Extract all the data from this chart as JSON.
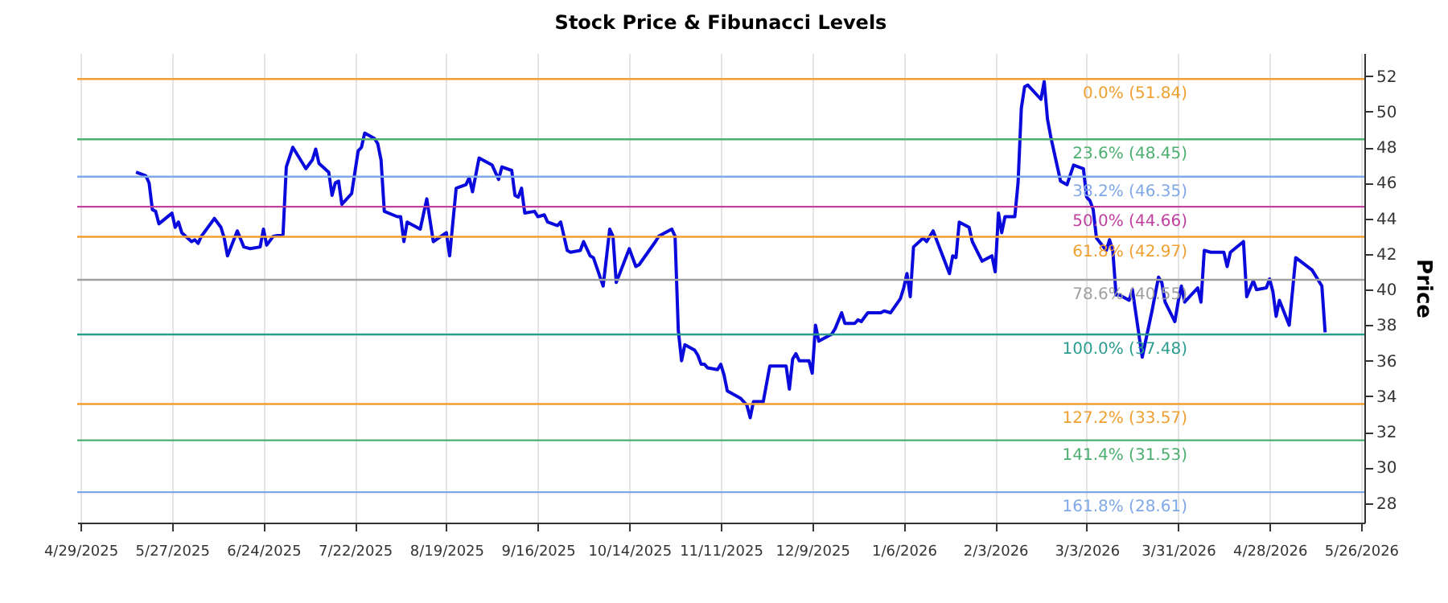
{
  "chart_data": {
    "type": "line",
    "title": "Stock Price & Fibunacci Levels",
    "ylabel": "Price",
    "x": [
      "2025-05-16",
      "2025-05-19",
      "2025-05-20",
      "2025-05-21",
      "2025-05-22",
      "2025-05-23",
      "2025-05-27",
      "2025-05-28",
      "2025-05-29",
      "2025-05-30",
      "2025-06-02",
      "2025-06-03",
      "2025-06-04",
      "2025-06-05",
      "2025-06-09",
      "2025-06-11",
      "2025-06-12",
      "2025-06-13",
      "2025-06-16",
      "2025-06-18",
      "2025-06-20",
      "2025-06-23",
      "2025-06-24",
      "2025-06-25",
      "2025-06-27",
      "2025-06-30",
      "2025-07-01",
      "2025-07-03",
      "2025-07-07",
      "2025-07-09",
      "2025-07-10",
      "2025-07-11",
      "2025-07-14",
      "2025-07-15",
      "2025-07-16",
      "2025-07-17",
      "2025-07-18",
      "2025-07-21",
      "2025-07-23",
      "2025-07-24",
      "2025-07-25",
      "2025-07-28",
      "2025-07-29",
      "2025-07-30",
      "2025-07-31",
      "2025-08-04",
      "2025-08-05",
      "2025-08-06",
      "2025-08-07",
      "2025-08-11",
      "2025-08-13",
      "2025-08-15",
      "2025-08-19",
      "2025-08-20",
      "2025-08-22",
      "2025-08-25",
      "2025-08-26",
      "2025-08-27",
      "2025-08-29",
      "2025-09-02",
      "2025-09-04",
      "2025-09-05",
      "2025-09-08",
      "2025-09-09",
      "2025-09-10",
      "2025-09-11",
      "2025-09-12",
      "2025-09-15",
      "2025-09-16",
      "2025-09-18",
      "2025-09-19",
      "2025-09-22",
      "2025-09-23",
      "2025-09-25",
      "2025-09-26",
      "2025-09-29",
      "2025-09-30",
      "2025-10-02",
      "2025-10-03",
      "2025-10-06",
      "2025-10-08",
      "2025-10-09",
      "2025-10-10",
      "2025-10-14",
      "2025-10-16",
      "2025-10-17",
      "2025-10-22",
      "2025-10-23",
      "2025-10-27",
      "2025-10-28",
      "2025-10-29",
      "2025-10-30",
      "2025-10-31",
      "2025-11-03",
      "2025-11-04",
      "2025-11-05",
      "2025-11-06",
      "2025-11-07",
      "2025-11-10",
      "2025-11-11",
      "2025-11-12",
      "2025-11-13",
      "2025-11-17",
      "2025-11-19",
      "2025-11-20",
      "2025-11-21",
      "2025-11-24",
      "2025-11-26",
      "2025-12-01",
      "2025-12-02",
      "2025-12-03",
      "2025-12-04",
      "2025-12-05",
      "2025-12-08",
      "2025-12-09",
      "2025-12-10",
      "2025-12-11",
      "2025-12-15",
      "2025-12-16",
      "2025-12-18",
      "2025-12-19",
      "2025-12-22",
      "2025-12-23",
      "2025-12-24",
      "2025-12-26",
      "2025-12-30",
      "2025-12-31",
      "2026-01-02",
      "2026-01-05",
      "2026-01-06",
      "2026-01-07",
      "2026-01-08",
      "2026-01-09",
      "2026-01-12",
      "2026-01-13",
      "2026-01-15",
      "2026-01-20",
      "2026-01-21",
      "2026-01-22",
      "2026-01-23",
      "2026-01-26",
      "2026-01-27",
      "2026-01-30",
      "2026-02-02",
      "2026-02-03",
      "2026-02-04",
      "2026-02-05",
      "2026-02-06",
      "2026-02-09",
      "2026-02-10",
      "2026-02-11",
      "2026-02-12",
      "2026-02-13",
      "2026-02-17",
      "2026-02-18",
      "2026-02-19",
      "2026-02-20",
      "2026-02-23",
      "2026-02-25",
      "2026-02-27",
      "2026-03-02",
      "2026-03-03",
      "2026-03-04",
      "2026-03-05",
      "2026-03-06",
      "2026-03-09",
      "2026-03-10",
      "2026-03-11",
      "2026-03-12",
      "2026-03-13",
      "2026-03-16",
      "2026-03-17",
      "2026-03-20",
      "2026-03-23",
      "2026-03-25",
      "2026-03-26",
      "2026-03-27",
      "2026-03-30",
      "2026-03-31",
      "2026-04-01",
      "2026-04-02",
      "2026-04-06",
      "2026-04-07",
      "2026-04-08",
      "2026-04-10",
      "2026-04-14",
      "2026-04-15",
      "2026-04-16",
      "2026-04-20",
      "2026-04-21",
      "2026-04-23",
      "2026-04-24",
      "2026-04-27",
      "2026-04-28",
      "2026-04-29",
      "2026-04-30",
      "2026-05-01",
      "2026-05-04",
      "2026-05-06",
      "2026-05-11",
      "2026-05-14",
      "2026-05-15"
    ],
    "series": [
      {
        "color": "#0a0adc",
        "values": [
          46.6,
          46.4,
          46.0,
          44.5,
          44.4,
          43.7,
          44.3,
          43.5,
          43.8,
          43.2,
          42.7,
          42.8,
          42.6,
          43.0,
          44.0,
          43.5,
          42.9,
          41.9,
          43.3,
          42.4,
          42.3,
          42.4,
          43.4,
          42.5,
          43.0,
          43.1,
          46.9,
          48.0,
          46.8,
          47.3,
          47.9,
          47.1,
          46.6,
          45.3,
          46.0,
          46.1,
          44.8,
          45.4,
          47.8,
          48.0,
          48.8,
          48.5,
          48.2,
          47.3,
          44.4,
          44.1,
          44.1,
          42.7,
          43.8,
          43.4,
          45.1,
          42.7,
          43.2,
          41.9,
          45.7,
          45.9,
          46.3,
          45.5,
          47.4,
          47.0,
          46.2,
          46.9,
          46.7,
          45.3,
          45.2,
          45.7,
          44.3,
          44.4,
          44.1,
          44.2,
          43.8,
          43.6,
          43.8,
          42.2,
          42.1,
          42.2,
          42.7,
          41.9,
          41.8,
          40.2,
          43.4,
          43.0,
          40.4,
          42.3,
          41.3,
          41.4,
          42.7,
          43.0,
          43.4,
          43.0,
          37.7,
          36.0,
          36.9,
          36.6,
          36.3,
          35.8,
          35.8,
          35.6,
          35.5,
          35.8,
          35.2,
          34.3,
          33.9,
          33.5,
          32.8,
          33.7,
          33.7,
          35.7,
          35.7,
          34.4,
          36.1,
          36.4,
          36.0,
          36.0,
          35.3,
          38.0,
          37.1,
          37.5,
          37.8,
          38.7,
          38.1,
          38.1,
          38.3,
          38.2,
          38.7,
          38.7,
          38.8,
          38.7,
          39.5,
          40.1,
          40.9,
          39.6,
          42.4,
          42.9,
          42.7,
          43.3,
          40.9,
          41.9,
          41.8,
          43.8,
          43.5,
          42.7,
          41.6,
          41.9,
          41.0,
          44.3,
          43.2,
          44.1,
          44.1,
          46.0,
          50.2,
          51.4,
          51.5,
          50.7,
          51.7,
          49.6,
          48.6,
          46.1,
          45.9,
          47.0,
          46.8,
          45.2,
          45.0,
          44.5,
          42.9,
          42.2,
          42.8,
          42.2,
          39.7,
          39.7,
          39.4,
          40.0,
          36.2,
          38.8,
          40.7,
          40.4,
          39.3,
          38.2,
          39.3,
          40.2,
          39.3,
          40.1,
          39.3,
          42.2,
          42.1,
          42.1,
          41.3,
          42.1,
          42.7,
          39.6,
          40.5,
          40.0,
          40.1,
          40.6,
          39.9,
          38.5,
          39.4,
          38.0,
          41.8,
          41.1,
          40.2,
          37.6
        ]
      }
    ],
    "xlim": [
      "2025-04-28",
      "2026-05-27"
    ],
    "xticks": [
      {
        "value": "2025-04-29",
        "label": "4/29/2025"
      },
      {
        "value": "2025-05-27",
        "label": "5/27/2025"
      },
      {
        "value": "2025-06-24",
        "label": "6/24/2025"
      },
      {
        "value": "2025-07-22",
        "label": "7/22/2025"
      },
      {
        "value": "2025-08-19",
        "label": "8/19/2025"
      },
      {
        "value": "2025-09-16",
        "label": "9/16/2025"
      },
      {
        "value": "2025-10-14",
        "label": "10/14/2025"
      },
      {
        "value": "2025-11-11",
        "label": "11/11/2025"
      },
      {
        "value": "2025-12-09",
        "label": "12/9/2025"
      },
      {
        "value": "2026-01-06",
        "label": "1/6/2026"
      },
      {
        "value": "2026-02-03",
        "label": "2/3/2026"
      },
      {
        "value": "2026-03-03",
        "label": "3/3/2026"
      },
      {
        "value": "2026-03-31",
        "label": "3/31/2026"
      },
      {
        "value": "2026-04-28",
        "label": "4/28/2026"
      },
      {
        "value": "2026-05-26",
        "label": "5/26/2026"
      }
    ],
    "ylim": [
      26.9,
      53.3
    ],
    "yticks": [
      28,
      30,
      32,
      34,
      36,
      38,
      40,
      42,
      44,
      46,
      48,
      50,
      52
    ],
    "grid": "x",
    "line_style": "solid",
    "ref_lines": [
      {
        "axis": "y",
        "value": 51.84,
        "label": "0.0% (51.84)",
        "color": "#f0a030"
      },
      {
        "axis": "y",
        "value": 48.45,
        "label": "23.6% (48.45)",
        "color": "#4caf70"
      },
      {
        "axis": "y",
        "value": 46.35,
        "label": "38.2% (46.35)",
        "color": "#7fa8e8"
      },
      {
        "axis": "y",
        "value": 44.66,
        "label": "50.0% (44.66)",
        "color": "#c040a0"
      },
      {
        "axis": "y",
        "value": 42.97,
        "label": "61.8% (42.97)",
        "color": "#f0a030"
      },
      {
        "axis": "y",
        "value": 40.55,
        "label": "78.6% (40.55)",
        "color": "#a0a0a0"
      },
      {
        "axis": "y",
        "value": 37.48,
        "label": "100.0% (37.48)",
        "color": "#2a9d8f"
      },
      {
        "axis": "y",
        "value": 33.57,
        "label": "127.2% (33.57)",
        "color": "#f0a030"
      },
      {
        "axis": "y",
        "value": 31.53,
        "label": "141.4% (31.53)",
        "color": "#4caf70"
      },
      {
        "axis": "y",
        "value": 28.61,
        "label": "161.8% (28.61)",
        "color": "#7fa8e8"
      }
    ]
  }
}
